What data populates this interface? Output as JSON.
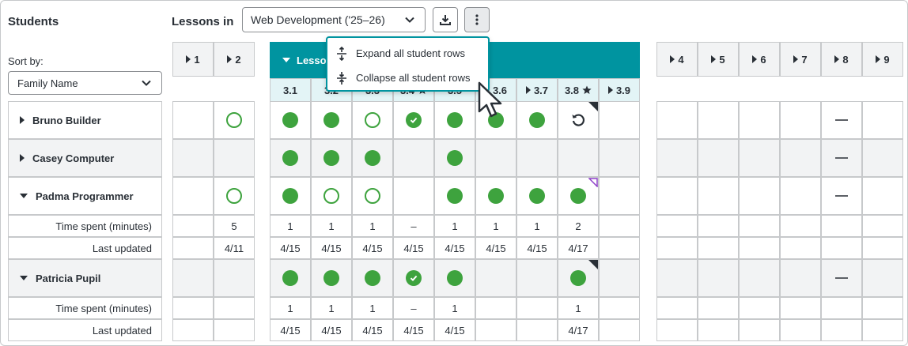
{
  "students_title": "Students",
  "lessons_in_label": "Lessons in",
  "unit_select": {
    "value": "Web Development ('25–26)"
  },
  "sort": {
    "label": "Sort by:",
    "value": "Family Name"
  },
  "collapsed_lessons_left": [
    {
      "label": "1"
    },
    {
      "label": "2"
    }
  ],
  "expanded_lesson": {
    "label": "Lesson 3"
  },
  "collapsed_lessons_right": [
    {
      "label": "4"
    },
    {
      "label": "5"
    },
    {
      "label": "6"
    },
    {
      "label": "7"
    },
    {
      "label": "8"
    },
    {
      "label": "9"
    }
  ],
  "sublevels": [
    {
      "label": "3.1",
      "star": false,
      "arrow": false
    },
    {
      "label": "3.2",
      "star": false,
      "arrow": false
    },
    {
      "label": "3.3",
      "star": false,
      "arrow": false
    },
    {
      "label": "3.4",
      "star": true,
      "arrow": false
    },
    {
      "label": "3.5",
      "star": false,
      "arrow": false
    },
    {
      "label": "3.6",
      "star": false,
      "arrow": true
    },
    {
      "label": "3.7",
      "star": false,
      "arrow": true
    },
    {
      "label": "3.8",
      "star": true,
      "arrow": false
    },
    {
      "label": "3.9",
      "star": false,
      "arrow": true
    }
  ],
  "menu": {
    "expand_all": "Expand all student rows",
    "collapse_all": "Collapse all student rows"
  },
  "students": [
    {
      "name": "Bruno Builder",
      "expanded": false,
      "lesson1": "",
      "lesson2": "ring",
      "levels": [
        "dot",
        "dot",
        "ring",
        "check",
        "dot",
        "dot",
        "dot",
        "retry",
        ""
      ],
      "level_corner": [
        "",
        "",
        "",
        "",
        "",
        "",
        "",
        "black",
        ""
      ],
      "lesson8": "dash"
    },
    {
      "name": "Casey Computer",
      "expanded": false,
      "lesson1": "",
      "lesson2": "",
      "levels": [
        "dot",
        "dot",
        "dot",
        "",
        "dot",
        "",
        "",
        "",
        ""
      ],
      "level_corner": [
        "",
        "",
        "",
        "",
        "",
        "",
        "",
        "",
        ""
      ],
      "lesson8": "dash"
    },
    {
      "name": "Padma Programmer",
      "expanded": true,
      "lesson1": "",
      "lesson2": "ring",
      "levels": [
        "dot",
        "ring",
        "ring",
        "",
        "dot",
        "dot",
        "dot",
        "dot",
        ""
      ],
      "level_corner": [
        "",
        "",
        "",
        "",
        "",
        "",
        "",
        "purple",
        ""
      ],
      "lesson8": "dash",
      "time_label": "Time spent (minutes)",
      "time_lesson2": "5",
      "time": [
        "1",
        "1",
        "1",
        "–",
        "1",
        "1",
        "1",
        "2",
        ""
      ],
      "updated_label": "Last updated",
      "updated_lesson2": "4/11",
      "updated": [
        "4/15",
        "4/15",
        "4/15",
        "4/15",
        "4/15",
        "4/15",
        "4/15",
        "4/17",
        ""
      ]
    },
    {
      "name": "Patricia Pupil",
      "expanded": true,
      "lesson1": "",
      "lesson2": "",
      "levels": [
        "dot",
        "dot",
        "dot",
        "check",
        "dot",
        "",
        "",
        "dot",
        ""
      ],
      "level_corner": [
        "",
        "",
        "",
        "",
        "",
        "",
        "",
        "black",
        ""
      ],
      "lesson8": "dash",
      "time_label": "Time spent (minutes)",
      "time_lesson2": "",
      "time": [
        "1",
        "1",
        "1",
        "–",
        "1",
        "",
        "",
        "1",
        ""
      ],
      "updated_label": "Last updated",
      "updated_lesson2": "",
      "updated": [
        "4/15",
        "4/15",
        "4/15",
        "4/15",
        "4/15",
        "",
        "",
        "4/17",
        ""
      ]
    }
  ]
}
